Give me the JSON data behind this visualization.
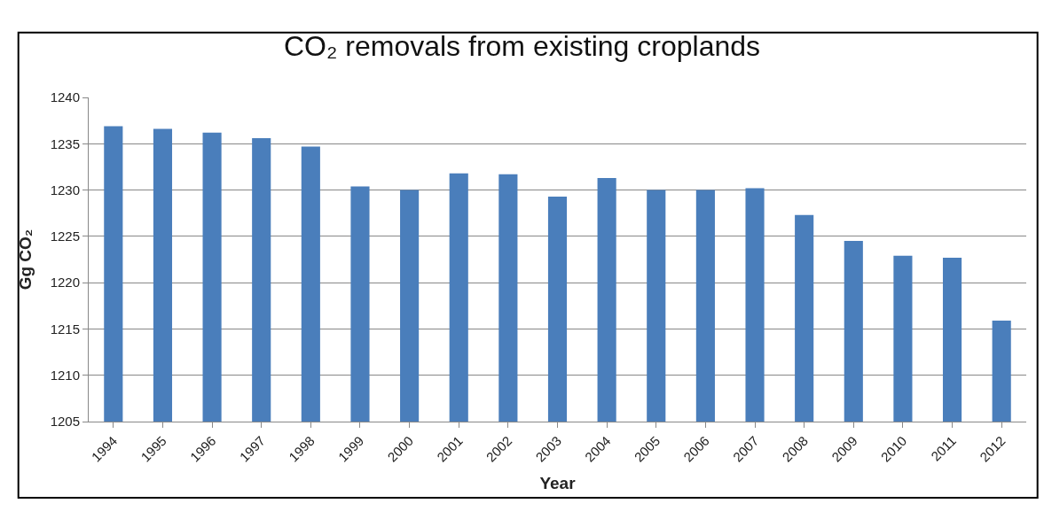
{
  "chart_data": {
    "type": "bar",
    "title": "CO₂ removals from existing croplands",
    "xlabel": "Year",
    "ylabel": "Gg CO₂",
    "categories": [
      "1994",
      "1995",
      "1996",
      "1997",
      "1998",
      "1999",
      "2000",
      "2001",
      "2002",
      "2003",
      "2004",
      "2005",
      "2006",
      "2007",
      "2008",
      "2009",
      "2010",
      "2011",
      "2012"
    ],
    "values": [
      1236.9,
      1236.6,
      1236.2,
      1235.6,
      1234.7,
      1230.4,
      1230.0,
      1231.8,
      1231.7,
      1229.3,
      1231.3,
      1230.0,
      1230.0,
      1230.2,
      1227.3,
      1224.5,
      1222.9,
      1222.7,
      1215.9
    ],
    "color": "#4a7ebb",
    "ylim": [
      1205,
      1240
    ],
    "yticks": [
      1205,
      1210,
      1215,
      1220,
      1225,
      1230,
      1235,
      1240
    ],
    "grid": "y",
    "legend": false
  }
}
